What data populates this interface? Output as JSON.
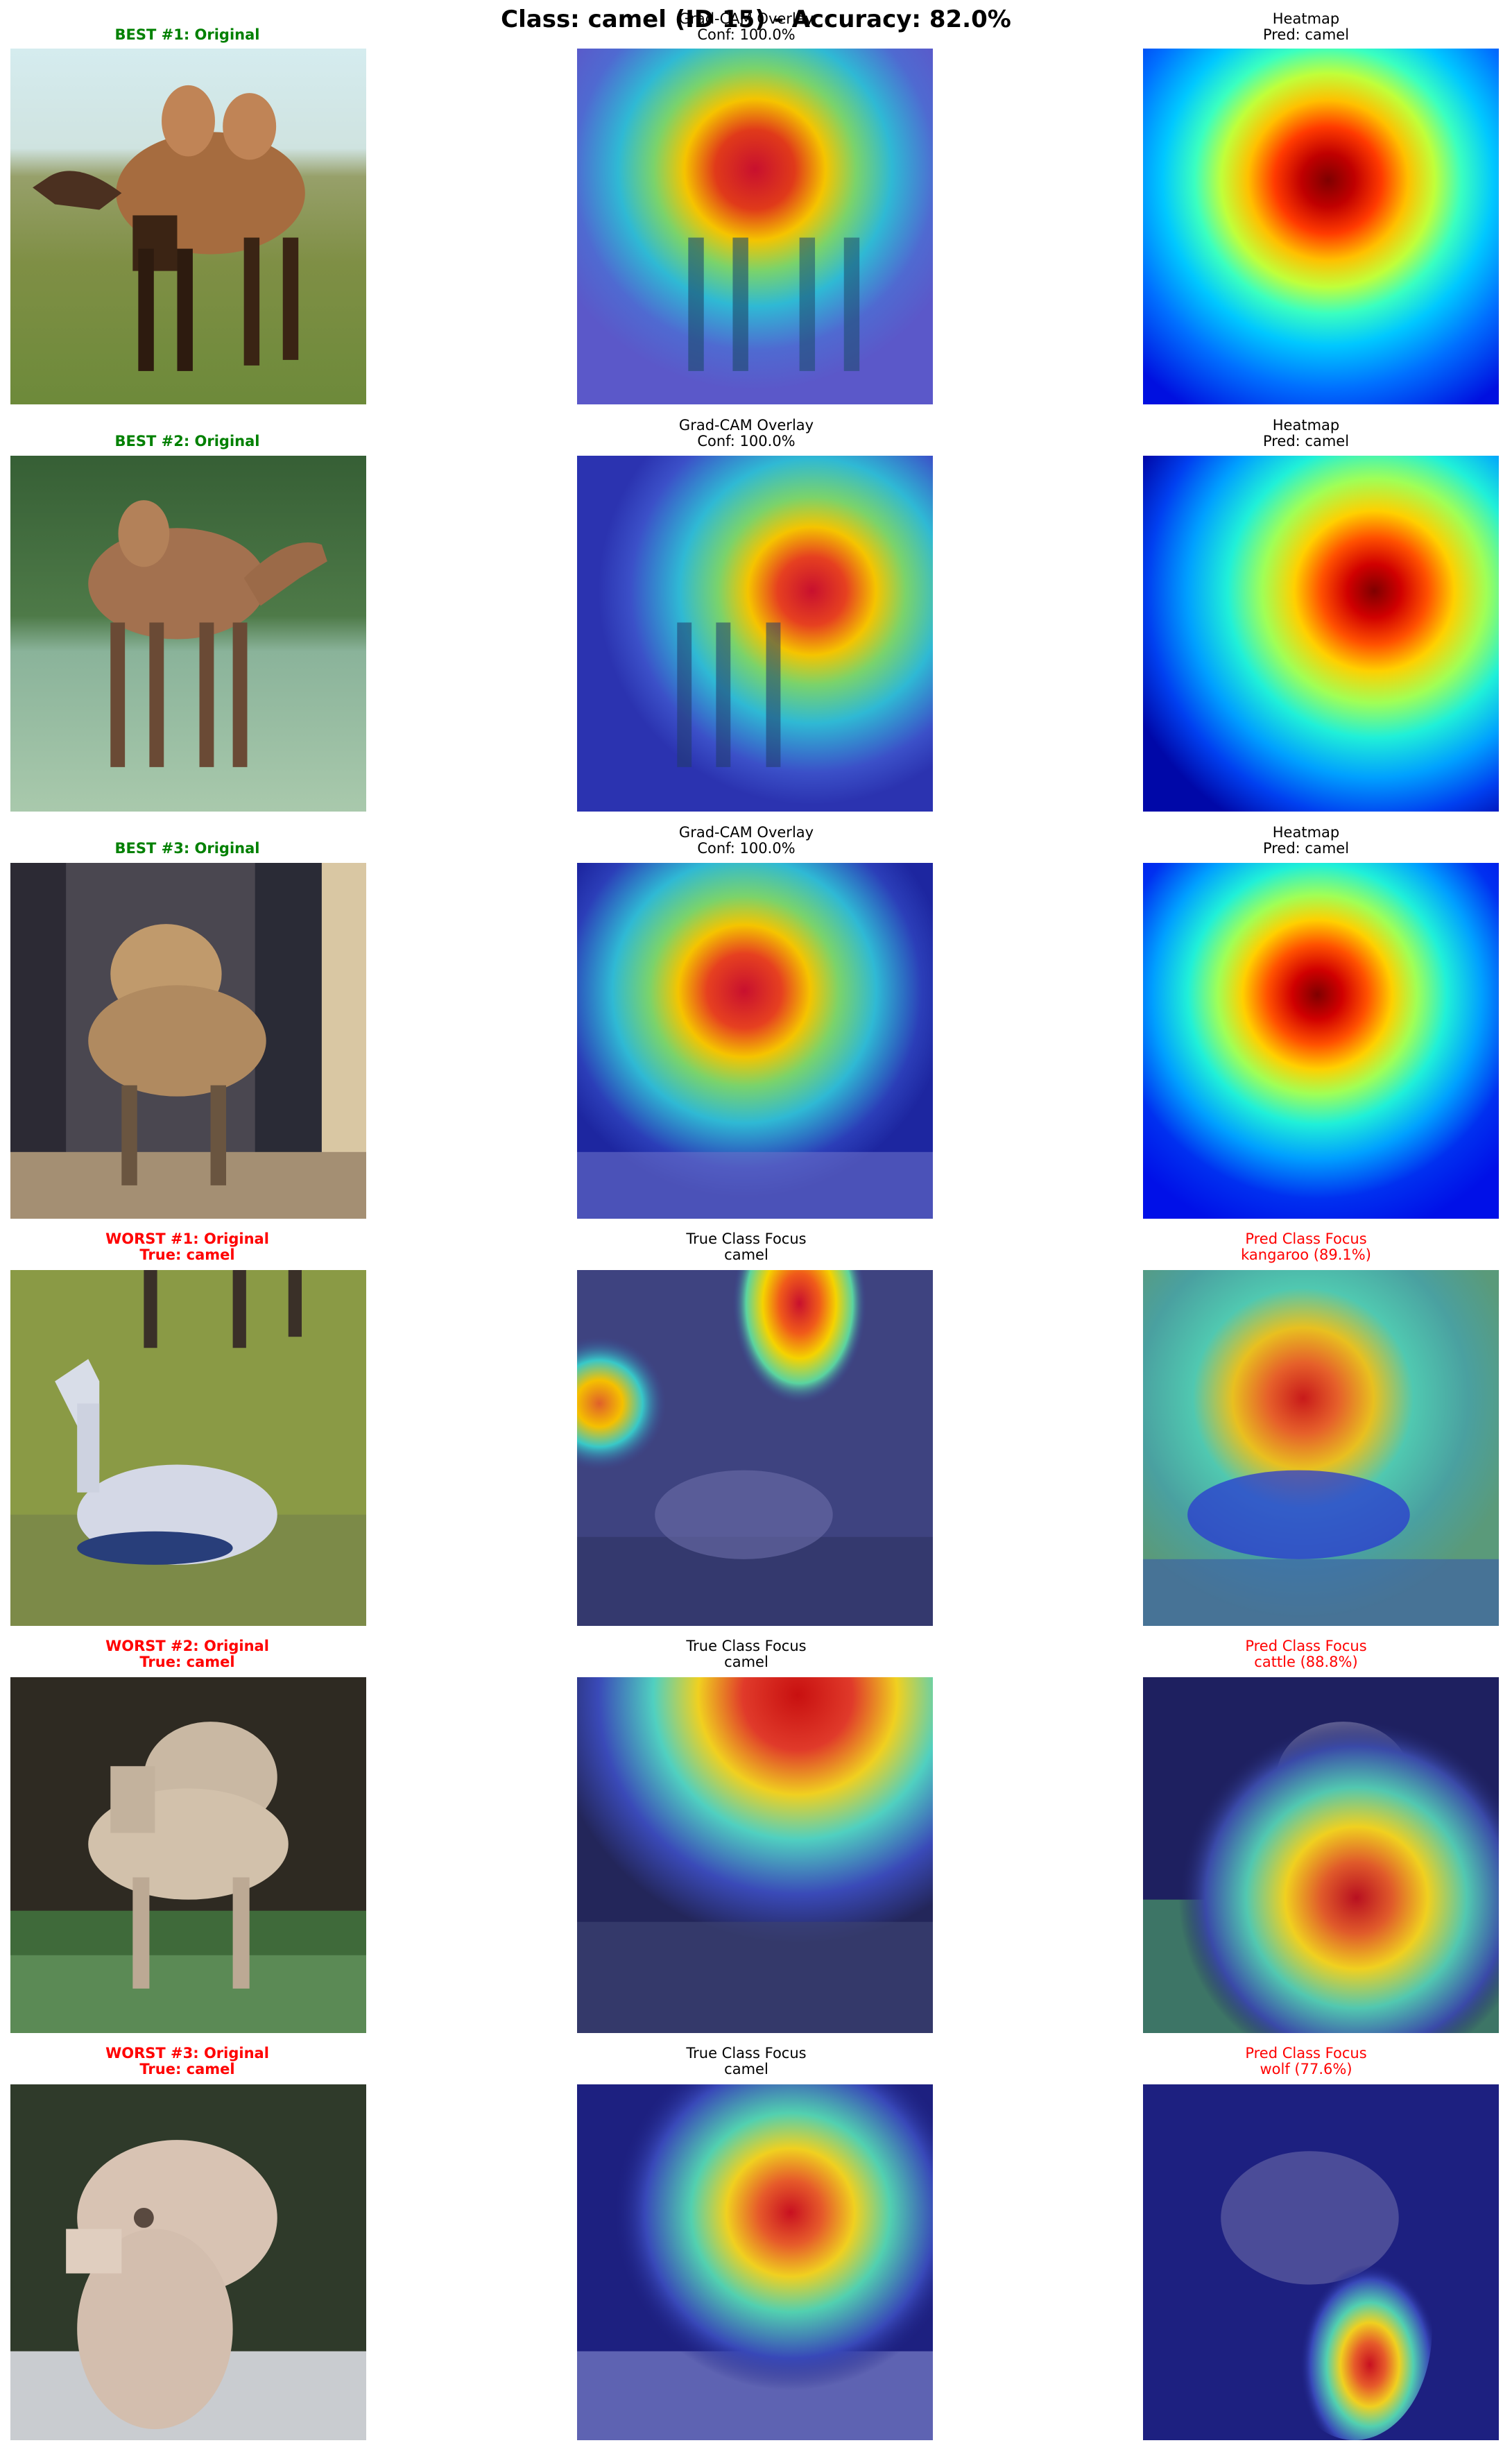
{
  "figure": {
    "title": "Class: camel (ID 15) - Accuracy: 82.0%"
  },
  "rows": [
    {
      "kind": "best",
      "col1": {
        "line1": "BEST #1: Original",
        "line2": ""
      },
      "col2": {
        "line1": "Grad-CAM Overlay",
        "line2": "Conf: 100.0%"
      },
      "col3": {
        "line1": "Heatmap",
        "line2": "Pred: camel"
      }
    },
    {
      "kind": "best",
      "col1": {
        "line1": "BEST #2: Original",
        "line2": ""
      },
      "col2": {
        "line1": "Grad-CAM Overlay",
        "line2": "Conf: 100.0%"
      },
      "col3": {
        "line1": "Heatmap",
        "line2": "Pred: camel"
      }
    },
    {
      "kind": "best",
      "col1": {
        "line1": "BEST #3: Original",
        "line2": ""
      },
      "col2": {
        "line1": "Grad-CAM Overlay",
        "line2": "Conf: 100.0%"
      },
      "col3": {
        "line1": "Heatmap",
        "line2": "Pred: camel"
      }
    },
    {
      "kind": "worst",
      "col1": {
        "line1": "WORST #1: Original",
        "line2": "True: camel"
      },
      "col2": {
        "line1": "True Class Focus",
        "line2": "camel"
      },
      "col3": {
        "line1": "Pred Class Focus",
        "line2": "kangaroo (89.1%)"
      }
    },
    {
      "kind": "worst",
      "col1": {
        "line1": "WORST #2: Original",
        "line2": "True: camel"
      },
      "col2": {
        "line1": "True Class Focus",
        "line2": "camel"
      },
      "col3": {
        "line1": "Pred Class Focus",
        "line2": "cattle (88.8%)"
      }
    },
    {
      "kind": "worst",
      "col1": {
        "line1": "WORST #3: Original",
        "line2": "True: camel"
      },
      "col2": {
        "line1": "True Class Focus",
        "line2": "camel"
      },
      "col3": {
        "line1": "Pred Class Focus",
        "line2": "wolf (77.6%)"
      }
    }
  ],
  "colors": {
    "best_title": "#008000",
    "worst_title": "#ff0000",
    "jet_low": "#00008f",
    "jet_high": "#800000"
  }
}
